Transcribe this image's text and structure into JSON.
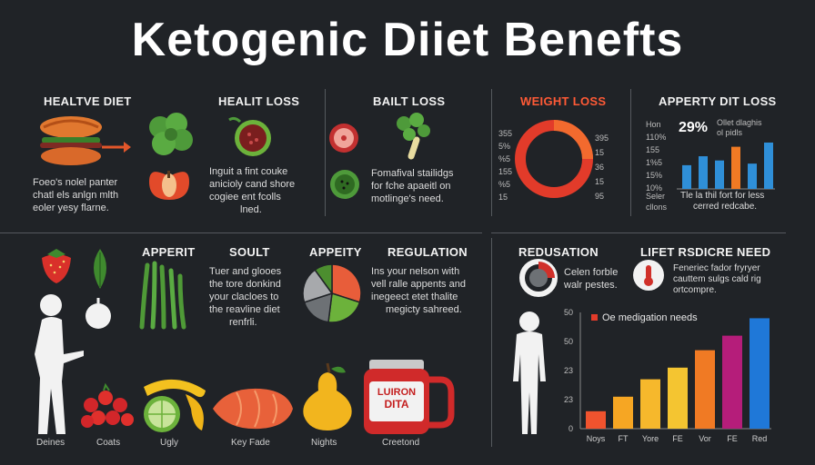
{
  "title": "Ketogenic Diiet Benefts",
  "panels": {
    "p1": {
      "header": "HEALTVE DIET",
      "text": [
        "Foeo's nolel panter",
        "chatl els anlgn mlth",
        "eoler yesy flarne."
      ]
    },
    "p2": {
      "header": "HEALIT LOSS",
      "text": [
        "Inguit a fint couke",
        "anicioly cand shore",
        "cogiee ent fcolls",
        "lned."
      ]
    },
    "p3": {
      "header": "BAILT LOSS",
      "text": [
        "Fomafival stailidgs",
        "for fche apaeitl on",
        "motlinge's need."
      ]
    },
    "p4": {
      "header": "WEIGHT LOSS",
      "ring_left": [
        "355",
        "5%",
        "%5",
        "155",
        "%5",
        "15"
      ],
      "ring_right": [
        "395",
        "15",
        "36",
        "15",
        "95"
      ]
    },
    "p5": {
      "header": "APPERTY DIT LOSS",
      "stat": "29%",
      "stat_note": [
        "Ollet dlaghis",
        "ol pidls"
      ],
      "ylabels": [
        "Hon",
        "110%",
        "155",
        "1%5",
        "15%",
        "10%"
      ],
      "xlabel": [
        "Seler",
        "cllons"
      ],
      "caption": [
        "Tle la thil fort for less",
        "cerred redcabe."
      ]
    },
    "p6": {
      "header": "APPERIT"
    },
    "p7": {
      "header": "SOULT",
      "text": [
        "Tuer and glooes",
        "the tore donkind",
        "your clacloes to",
        "the reavline diet",
        "renfrli."
      ]
    },
    "p8": {
      "header": "APPEITY"
    },
    "p9": {
      "header": "REGULATION",
      "text": [
        "Ins your nelson with",
        "vell ralle appents and",
        "inegeect etet thalite",
        "megicty sahreed."
      ]
    },
    "p10": {
      "header": "REDUSATION",
      "text": [
        "Celen forble",
        "walr pestes."
      ]
    },
    "p11": {
      "header": "LIFET RSDICRE NEED",
      "text": [
        "Feneriec fador fryryer",
        "cauttem sulgs cald rig",
        "ortcompre."
      ]
    }
  },
  "captions": [
    "Deines",
    "Coats",
    "Ugly",
    "Key Fade",
    "Nights",
    "Creetond"
  ],
  "jar_label": [
    "LUIRON",
    "DITA"
  ],
  "chart_data": [
    {
      "type": "bar",
      "values": [
        45,
        62,
        54,
        80,
        48,
        88
      ],
      "ylabels": [
        "Hon",
        "110%",
        "155",
        "1%5",
        "15%",
        "10%"
      ]
    },
    {
      "type": "bar",
      "legend": "Oe medigation needs",
      "categories": [
        "Noys",
        "FT",
        "Yore",
        "FE",
        "Vor",
        "FE",
        "Red"
      ],
      "values": [
        6,
        11,
        17,
        21,
        27,
        32,
        38
      ],
      "yticks": [
        "50",
        "50",
        "23",
        "23",
        "0"
      ],
      "ylim": [
        0,
        40
      ],
      "colors": [
        "#f0532e",
        "#f6a623",
        "#f6b82c",
        "#f4c531",
        "#f07a24",
        "#b51d7a",
        "#1f78d8"
      ]
    },
    {
      "type": "pie",
      "values": [
        30,
        22,
        18,
        20,
        10
      ],
      "colors": [
        "#e85d3a",
        "#6cb23b",
        "#6d7175",
        "#a7a9ac",
        "#4c8e2f"
      ]
    }
  ]
}
